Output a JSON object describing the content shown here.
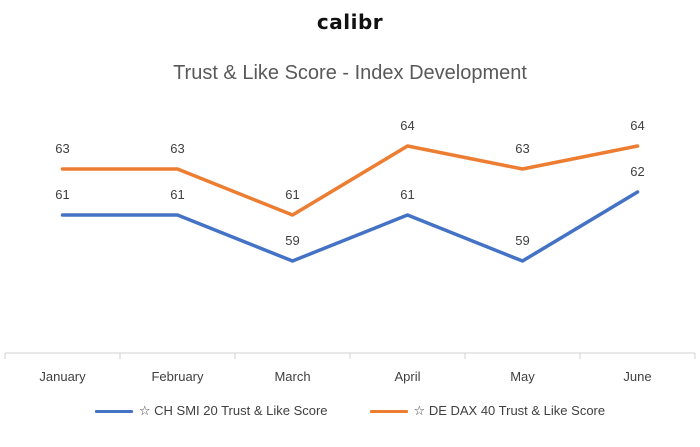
{
  "brand": {
    "logo_text": "calibr"
  },
  "chart_data": {
    "type": "line",
    "title": "Trust & Like Score - Index Development",
    "categories": [
      "January",
      "February",
      "March",
      "April",
      "May",
      "June"
    ],
    "series": [
      {
        "name": "☆ CH SMI 20 Trust & Like Score",
        "color": "#4472C4",
        "values": [
          61,
          61,
          59,
          61,
          59,
          62
        ]
      },
      {
        "name": "☆ DE DAX 40 Trust & Like Score",
        "color": "#ED7D31",
        "values": [
          63,
          63,
          61,
          64,
          63,
          64
        ]
      }
    ],
    "ylim": [
      55,
      66
    ],
    "grid": false,
    "data_labels": true,
    "legend_position": "bottom"
  }
}
